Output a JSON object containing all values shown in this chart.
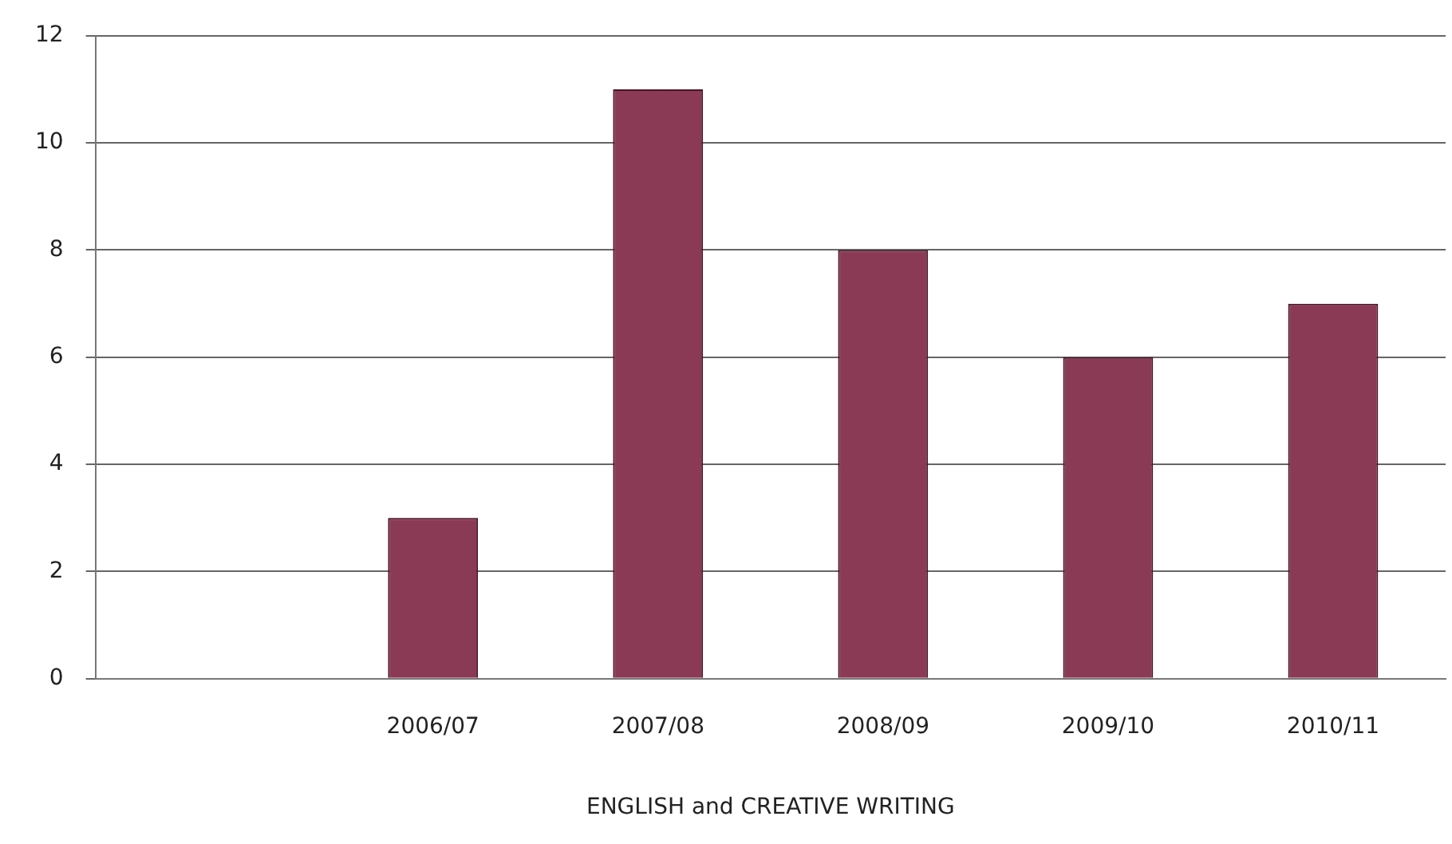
{
  "chart_data": {
    "type": "bar",
    "xlabel": "ENGLISH and CREATIVE WRITING",
    "categories": [
      null,
      "2006/07",
      "2007/08",
      "2008/09",
      "2009/10",
      "2010/11"
    ],
    "values": [
      null,
      3,
      11,
      8,
      6,
      7
    ],
    "color": "#8b3a55",
    "ylim": [
      0,
      12
    ],
    "yticks": [
      0,
      2,
      4,
      6,
      8,
      10,
      12
    ],
    "grid": "y",
    "legend": false
  }
}
